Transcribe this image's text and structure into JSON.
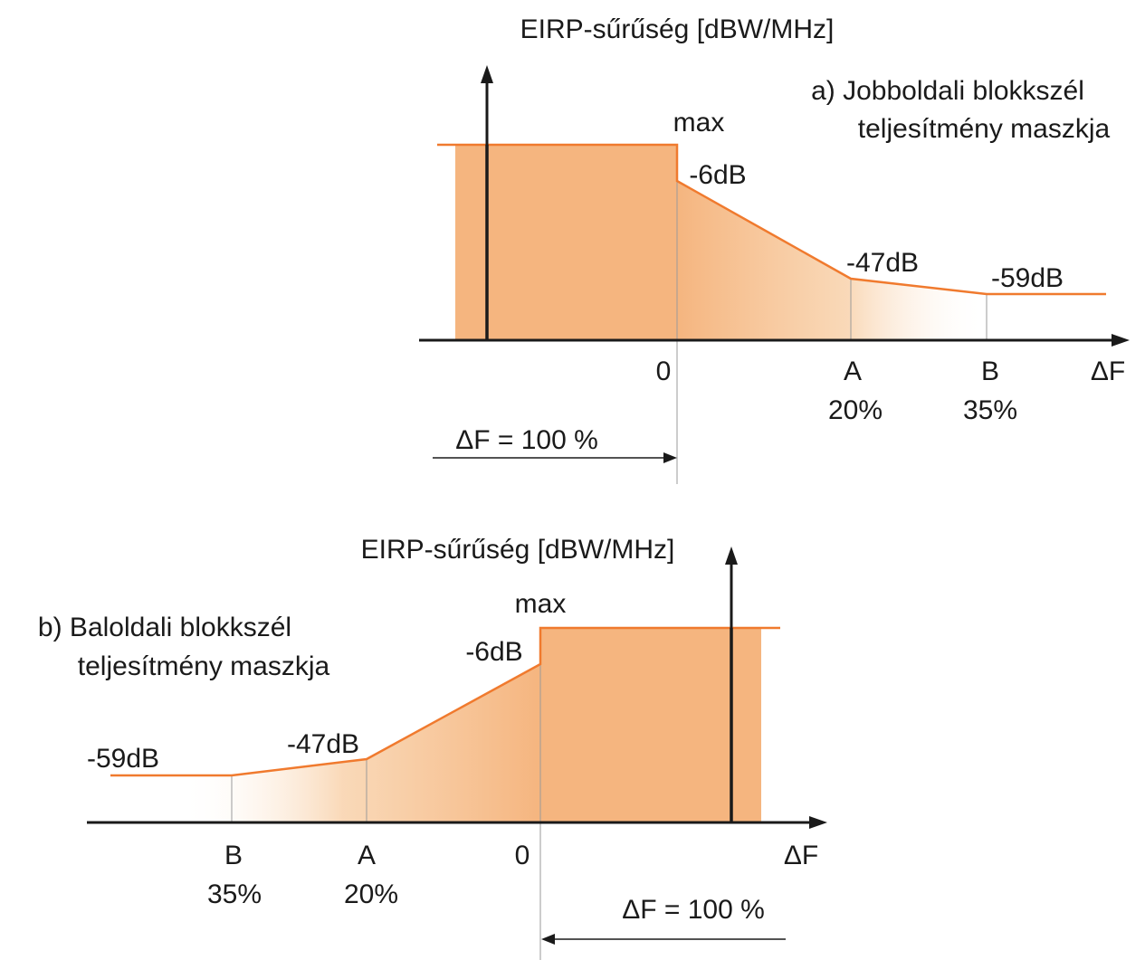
{
  "colors": {
    "mask_fill": "#f5b57f",
    "mask_line": "#f07a2e",
    "axis": "#1a1a1a"
  },
  "diagram_a": {
    "title_line1": "a) Jobboldali blokkszél",
    "title_line2": "teljesítmény maszkja",
    "y_axis_label": "EIRP-sűrűség [dBW/MHz]",
    "x_axis_label": "ΔF",
    "level_max": "max",
    "level_6": "-6dB",
    "level_47": "-47dB",
    "level_59": "-59dB",
    "tick_0": "0",
    "tick_a_letter": "A",
    "tick_a_pct": "20%",
    "tick_b_letter": "B",
    "tick_b_pct": "35%",
    "bandwidth": "ΔF = 100 %"
  },
  "diagram_b": {
    "title_line1": "b) Baloldali blokkszél",
    "title_line2": "teljesítmény maszkja",
    "y_axis_label": "EIRP-sűrűség [dBW/MHz]",
    "x_axis_label": "ΔF",
    "level_max": "max",
    "level_6": "-6dB",
    "level_47": "-47dB",
    "level_59": "-59dB",
    "tick_0": "0",
    "tick_a_letter": "A",
    "tick_a_pct": "20%",
    "tick_b_letter": "B",
    "tick_b_pct": "35%",
    "bandwidth": "ΔF = 100 %"
  }
}
